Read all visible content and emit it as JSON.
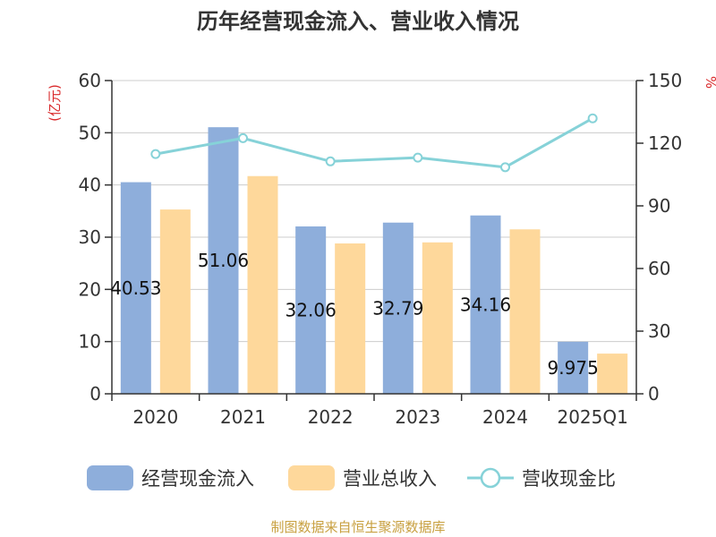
{
  "chart_data": {
    "type": "bar",
    "title": "历年经营现金流入、营业收入情况",
    "categories": [
      "2020",
      "2021",
      "2022",
      "2023",
      "2024",
      "2025Q1"
    ],
    "y_left": {
      "unit": "(亿元)",
      "ticks": [
        "0",
        "10",
        "20",
        "30",
        "40",
        "50",
        "60"
      ],
      "range": [
        0,
        60
      ]
    },
    "y_right": {
      "unit": "%",
      "ticks": [
        "0",
        "30",
        "60",
        "90",
        "120",
        "150"
      ],
      "range": [
        0,
        150
      ]
    },
    "series": [
      {
        "name": "经营现金流入",
        "type": "bar",
        "axis": "left",
        "color": "#8eaedb",
        "values": [
          40.53,
          51.06,
          32.06,
          32.79,
          34.16,
          9.975
        ],
        "labels": [
          "40.53",
          "51.06",
          "32.06",
          "32.79",
          "34.16",
          "9.975"
        ]
      },
      {
        "name": "营业总收入",
        "type": "bar",
        "axis": "left",
        "color": "#fed89b",
        "values": [
          35.3,
          41.7,
          28.8,
          29.0,
          31.5,
          7.7
        ]
      },
      {
        "name": "营收现金比",
        "type": "line",
        "axis": "right",
        "color": "#86d2d8",
        "values": [
          114.8,
          122.4,
          111.3,
          113.1,
          108.5,
          131.9
        ]
      }
    ],
    "grid": true,
    "legend_position": "bottom"
  },
  "source_text": "制图数据来自恒生聚源数据库",
  "colors": {
    "unit_red": "#d9282a",
    "source_gold": "#c8a040",
    "axis": "#333333",
    "grid": "#cccccc"
  }
}
